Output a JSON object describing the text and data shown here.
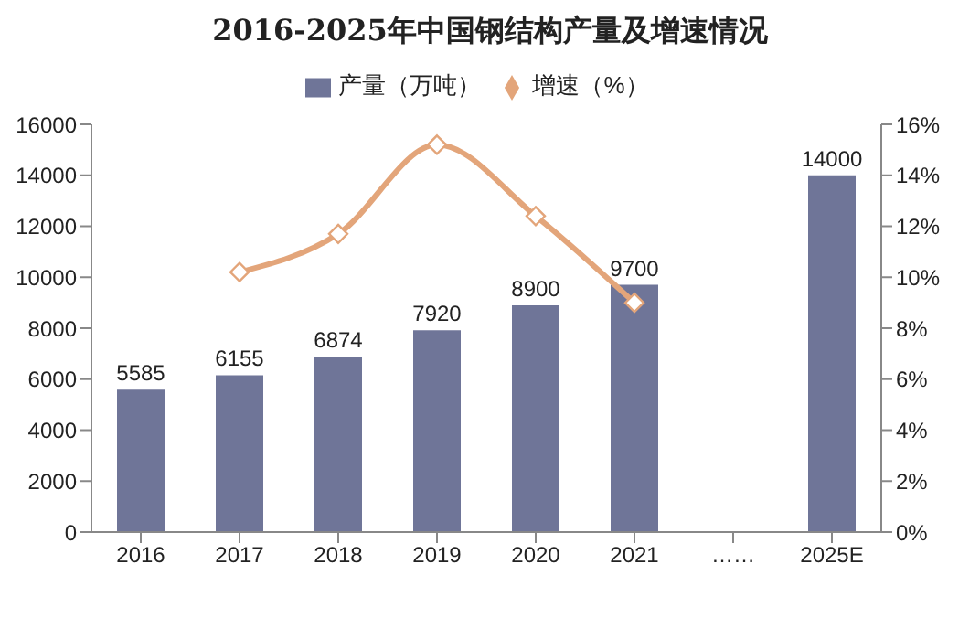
{
  "chart_data": {
    "type": "bar",
    "title": "2016-2025年中国钢结构产量及增速情况",
    "categories": [
      "2016",
      "2017",
      "2018",
      "2019",
      "2020",
      "2021",
      "……",
      "2025E"
    ],
    "series": [
      {
        "name": "产量（万吨）",
        "color": "#6f7598",
        "values": [
          5585,
          6155,
          6874,
          7920,
          8900,
          9700,
          null,
          14000
        ],
        "value_labels": [
          "5585",
          "6155",
          "6874",
          "7920",
          "8900",
          "9700",
          null,
          "14000"
        ]
      },
      {
        "name": "增速（%）",
        "type": "line",
        "axis": "y2",
        "color": "#e3a57a",
        "marker": "diamond",
        "values": [
          null,
          10.2,
          11.7,
          15.2,
          12.4,
          9.0,
          null,
          null
        ]
      }
    ],
    "ylim": [
      0,
      16000
    ],
    "yticks": [
      0,
      2000,
      4000,
      6000,
      8000,
      10000,
      12000,
      14000,
      16000
    ],
    "y2lim": [
      0,
      16
    ],
    "y2ticks": [
      {
        "value": 0,
        "label": "0%"
      },
      {
        "value": 2,
        "label": "2%"
      },
      {
        "value": 4,
        "label": "4%"
      },
      {
        "value": 6,
        "label": "6%"
      },
      {
        "value": 8,
        "label": "8%"
      },
      {
        "value": 10,
        "label": "10%"
      },
      {
        "value": 12,
        "label": "12%"
      },
      {
        "value": 14,
        "label": "14%"
      },
      {
        "value": 16,
        "label": "16%"
      }
    ],
    "grid": false,
    "legend": "top"
  }
}
